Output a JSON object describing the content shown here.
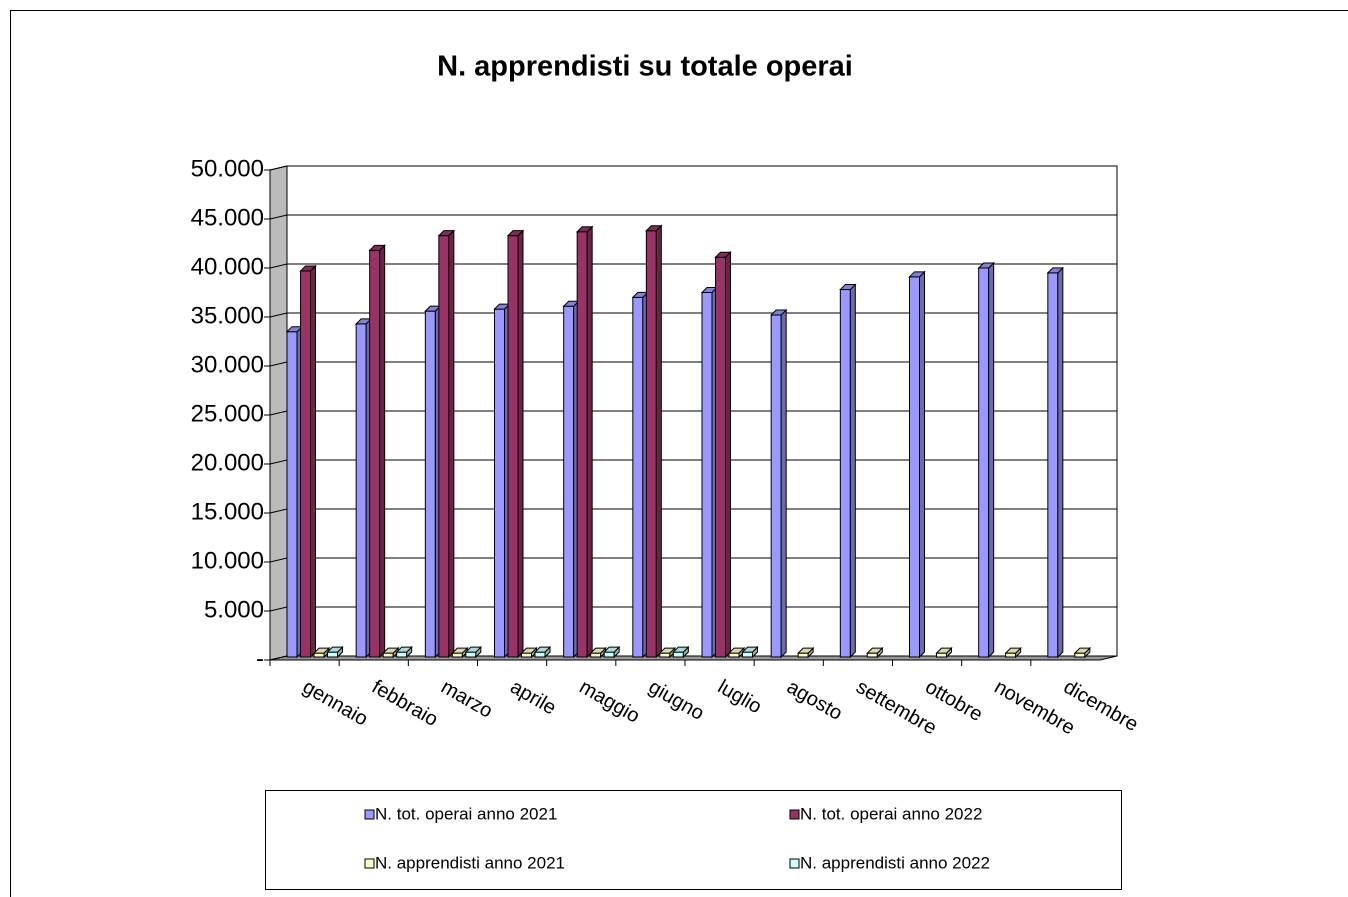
{
  "chart_data": {
    "type": "bar3d",
    "title": "N. apprendisti su totale operai",
    "categories": [
      "gennaio",
      "febbraio",
      "marzo",
      "aprile",
      "maggio",
      "giugno",
      "luglio",
      "agosto",
      "settembre",
      "ottobre",
      "novembre",
      "dicembre"
    ],
    "series": [
      {
        "name": "N. tot. operai anno 2021",
        "color": "#9999ff",
        "values": [
          33500,
          34300,
          35600,
          35800,
          36100,
          37000,
          37500,
          35200,
          37800,
          39100,
          40000,
          39500
        ]
      },
      {
        "name": "N. tot. operai anno 2022",
        "color": "#993366",
        "values": [
          39700,
          41800,
          43300,
          43300,
          43700,
          43800,
          41100,
          null,
          null,
          null,
          null,
          null
        ]
      },
      {
        "name": "N. apprendisti anno 2021",
        "color": "#ffffcc",
        "values": [
          700,
          700,
          700,
          700,
          700,
          700,
          700,
          700,
          700,
          700,
          700,
          700
        ]
      },
      {
        "name": "N. apprendisti anno 2022",
        "color": "#ccffff",
        "values": [
          800,
          800,
          800,
          800,
          800,
          800,
          800,
          null,
          null,
          null,
          null,
          null
        ]
      }
    ],
    "ylim": [
      0,
      50000
    ],
    "yticks": [
      {
        "value": 0,
        "label": "-"
      },
      {
        "value": 5000,
        "label": "5.000"
      },
      {
        "value": 10000,
        "label": "10.000"
      },
      {
        "value": 15000,
        "label": "15.000"
      },
      {
        "value": 20000,
        "label": "20.000"
      },
      {
        "value": 25000,
        "label": "25.000"
      },
      {
        "value": 30000,
        "label": "30.000"
      },
      {
        "value": 35000,
        "label": "35.000"
      },
      {
        "value": 40000,
        "label": "40.000"
      },
      {
        "value": 45000,
        "label": "45.000"
      },
      {
        "value": 50000,
        "label": "50.000"
      }
    ],
    "grid": true
  }
}
